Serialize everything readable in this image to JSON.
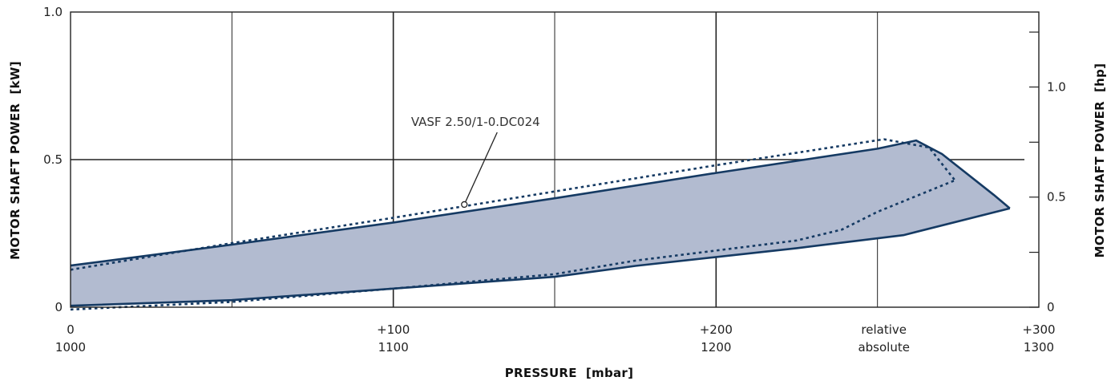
{
  "chart_data": {
    "type": "area",
    "xlabel": "PRESSURE  [mbar]",
    "ylabel_left": "MOTOR SHAFT POWER  [kW]",
    "ylabel_right": "MOTOR SHAFT POWER  [hp]",
    "xlim": [
      0,
      300
    ],
    "ylim": [
      0,
      1.0
    ],
    "x_ticks": [
      {
        "x": 0,
        "relative": "0",
        "absolute": "1000"
      },
      {
        "x": 100,
        "relative": "+100",
        "absolute": "1100"
      },
      {
        "x": 200,
        "relative": "+200",
        "absolute": "1200"
      },
      {
        "x": 300,
        "relative": "+300",
        "absolute": "1300"
      }
    ],
    "x_scale_labels": {
      "relative": "relative",
      "absolute": "absolute",
      "x": 252
    },
    "x_minor_grid": [
      50,
      150,
      250
    ],
    "y_ticks_left": [
      {
        "v": 0,
        "label": "0"
      },
      {
        "v": 0.5,
        "label": "0.5"
      },
      {
        "v": 1.0,
        "label": "1.0"
      }
    ],
    "y_ticks_right": [
      {
        "v": 0.0,
        "label": "0"
      },
      {
        "v": 0.186,
        "label": ""
      },
      {
        "v": 0.373,
        "label": "0.5"
      },
      {
        "v": 0.559,
        "label": ""
      },
      {
        "v": 0.746,
        "label": "1.0"
      },
      {
        "v": 0.932,
        "label": ""
      }
    ],
    "grid": true,
    "series": [
      {
        "name": "",
        "style": "solid",
        "upper": [
          [
            0,
            0.141
          ],
          [
            50,
            0.212
          ],
          [
            100,
            0.287
          ],
          [
            150,
            0.369
          ],
          [
            200,
            0.455
          ],
          [
            250,
            0.537
          ],
          [
            262,
            0.565
          ],
          [
            270,
            0.519
          ],
          [
            286,
            0.381
          ],
          [
            291,
            0.335
          ]
        ],
        "lower": [
          [
            0,
            0.005
          ],
          [
            50,
            0.024
          ],
          [
            100,
            0.063
          ],
          [
            150,
            0.103
          ],
          [
            175,
            0.14
          ],
          [
            225,
            0.2
          ],
          [
            258,
            0.244
          ],
          [
            291,
            0.335
          ]
        ]
      },
      {
        "name": "",
        "style": "dotted",
        "upper": [
          [
            0,
            0.127
          ],
          [
            50,
            0.217
          ],
          [
            100,
            0.303
          ],
          [
            150,
            0.392
          ],
          [
            200,
            0.481
          ],
          [
            252,
            0.569
          ],
          [
            266,
            0.541
          ],
          [
            274,
            0.43
          ]
        ],
        "lower": [
          [
            0,
            -0.008
          ],
          [
            50,
            0.018
          ],
          [
            100,
            0.063
          ],
          [
            150,
            0.112
          ],
          [
            175,
            0.158
          ],
          [
            225,
            0.226
          ],
          [
            239,
            0.263
          ],
          [
            250,
            0.323
          ],
          [
            274,
            0.43
          ]
        ]
      }
    ],
    "annotation": {
      "text": "VASF 2.50/1-0.DC024",
      "point": [
        122,
        0.348
      ]
    },
    "colors": {
      "fill": "#b2bbd0",
      "line": "#153a63",
      "grid": "#222222"
    }
  }
}
